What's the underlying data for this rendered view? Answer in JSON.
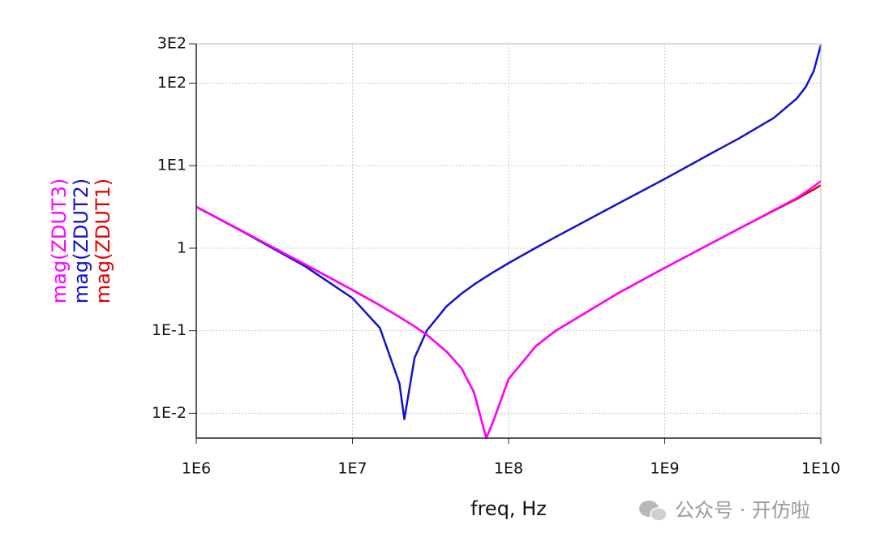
{
  "chart_data": {
    "type": "line",
    "xlabel": "freq, Hz",
    "xscale": "log",
    "yscale": "log",
    "grid": true,
    "watermark": "公众号 · 开仿啦",
    "xlim": [
      1000000,
      10000000000
    ],
    "ylim": [
      0.005,
      300
    ],
    "xticks": [
      {
        "value": 1000000,
        "label": "1E6"
      },
      {
        "value": 10000000,
        "label": "1E7"
      },
      {
        "value": 100000000,
        "label": "1E8"
      },
      {
        "value": 1000000000,
        "label": "1E9"
      },
      {
        "value": 10000000000,
        "label": "1E10"
      }
    ],
    "yticks": [
      {
        "value": 300,
        "label": "3E2"
      },
      {
        "value": 100,
        "label": "1E2"
      },
      {
        "value": 10,
        "label": "1E1"
      },
      1,
      {
        "value": 0.1,
        "label": "1E-1"
      },
      {
        "value": 0.01,
        "label": "1E-2"
      }
    ],
    "x": [
      1000000,
      2000000,
      5000000,
      10000000,
      15000000,
      20000000,
      21500000,
      25000000,
      30000000,
      40000000,
      50000000,
      60000000,
      72000000,
      80000000,
      100000000,
      150000000,
      200000000,
      500000000,
      1000000000,
      2000000000,
      3000000000,
      5000000000,
      7000000000,
      8000000000,
      9000000000,
      10000000000
    ],
    "series": [
      {
        "name": "mag(ZDUT3)",
        "color": "#ff00ff",
        "values": [
          3.18,
          1.59,
          0.633,
          0.312,
          0.203,
          0.147,
          0.135,
          0.113,
          0.089,
          0.056,
          0.035,
          0.018,
          0.005,
          0.0081,
          0.026,
          0.0655,
          0.0997,
          0.283,
          0.578,
          1.156,
          1.73,
          2.89,
          4.05,
          4.8,
          5.6,
          6.5
        ]
      },
      {
        "name": "mag(ZDUT2)",
        "color": "#1212cc",
        "values": [
          3.17,
          1.576,
          0.601,
          0.249,
          0.108,
          0.023,
          0.0085,
          0.047,
          0.101,
          0.197,
          0.282,
          0.362,
          0.453,
          0.513,
          0.659,
          1.016,
          1.366,
          3.45,
          6.91,
          14.2,
          21.5,
          38,
          65,
          90,
          140,
          290
        ]
      },
      {
        "name": "mag(ZDUT1)",
        "color": "#e00000",
        "values": [
          3.18,
          1.59,
          0.633,
          0.312,
          0.203,
          0.147,
          0.135,
          0.113,
          0.089,
          0.056,
          0.035,
          0.018,
          0.005,
          0.0081,
          0.026,
          0.0655,
          0.0997,
          0.283,
          0.578,
          1.156,
          1.73,
          2.85,
          3.95,
          4.55,
          5.15,
          5.8
        ]
      }
    ]
  }
}
